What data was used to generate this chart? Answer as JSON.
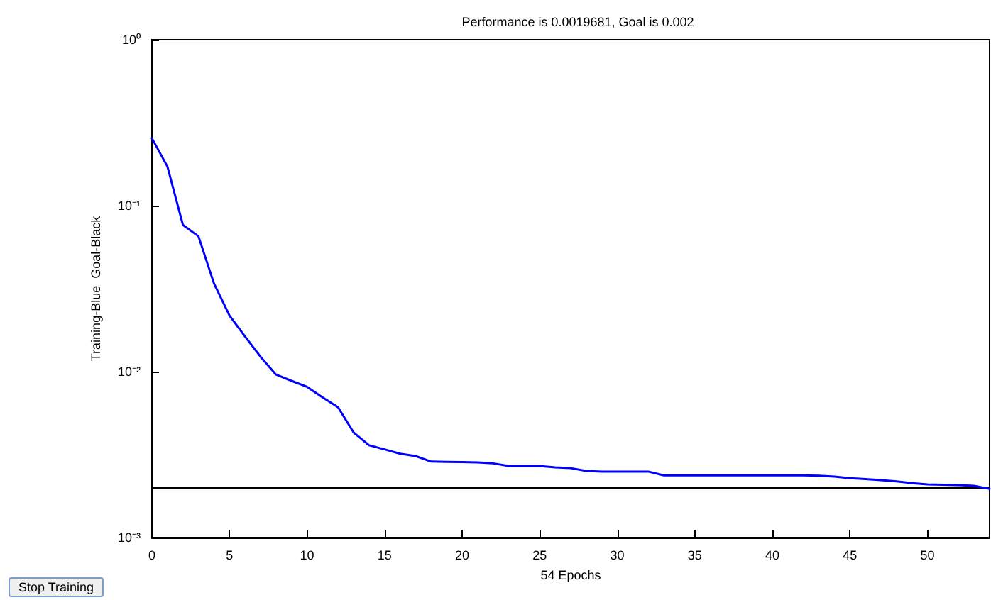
{
  "chart_data": {
    "type": "line",
    "title": "Performance is 0.0019681, Goal is 0.002",
    "xlabel": "54 Epochs",
    "ylabel": "Training-Blue  Goal-Black",
    "x": [
      0,
      1,
      2,
      3,
      4,
      5,
      6,
      7,
      8,
      9,
      10,
      11,
      12,
      13,
      14,
      15,
      16,
      17,
      18,
      19,
      20,
      21,
      22,
      23,
      24,
      25,
      26,
      27,
      28,
      29,
      30,
      31,
      32,
      33,
      34,
      35,
      36,
      37,
      38,
      39,
      40,
      41,
      42,
      43,
      44,
      45,
      46,
      47,
      48,
      49,
      50,
      51,
      52,
      53,
      54
    ],
    "series": [
      {
        "color": "#0000ff",
        "values": [
          0.255,
          0.172,
          0.0765,
          0.0654,
          0.034,
          0.0218,
          0.0163,
          0.0123,
          0.0096,
          0.0088,
          0.0081,
          0.007,
          0.0061,
          0.0043,
          0.0036,
          0.0034,
          0.0032,
          0.0031,
          0.00287,
          0.00286,
          0.00285,
          0.00284,
          0.0028,
          0.0027,
          0.0027,
          0.0027,
          0.00265,
          0.00262,
          0.00252,
          0.0025,
          0.0025,
          0.0025,
          0.0025,
          0.00237,
          0.00237,
          0.00237,
          0.00237,
          0.00237,
          0.00237,
          0.00237,
          0.00237,
          0.00237,
          0.00237,
          0.00236,
          0.00233,
          0.00228,
          0.00225,
          0.00222,
          0.00218,
          0.00213,
          0.00209,
          0.00208,
          0.00207,
          0.00205,
          0.0019681
        ]
      }
    ],
    "xlim": [
      0,
      54
    ],
    "xticks": [
      0,
      5,
      10,
      15,
      20,
      25,
      30,
      35,
      40,
      45,
      50
    ],
    "ylim": [
      0.001,
      1
    ],
    "yticks": [
      {
        "value": 0.001,
        "label": "10⁻³"
      },
      {
        "value": 0.01,
        "label": "10⁻²"
      },
      {
        "value": 0.1,
        "label": "10⁻¹"
      },
      {
        "value": 1,
        "label": "10⁰"
      }
    ],
    "log": "y",
    "grid": false,
    "marker": "none",
    "line_style": "solid",
    "ref_lines": [
      {
        "axis": "y",
        "value": 0.002,
        "color": "#000000",
        "line_style": "solid"
      }
    ],
    "annotations": [
      "Stop Training"
    ]
  }
}
